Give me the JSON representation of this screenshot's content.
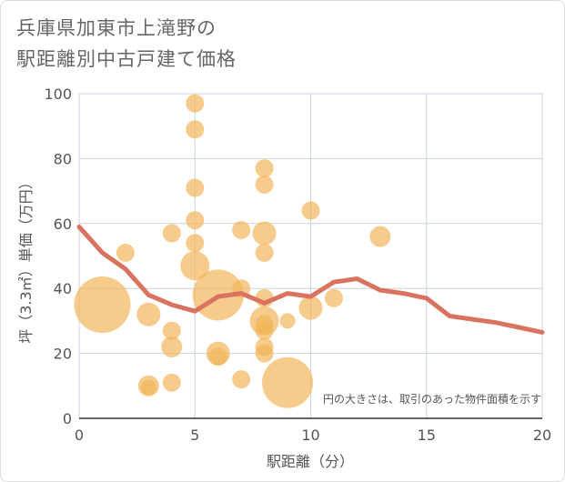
{
  "title": {
    "line1": "兵庫県加東市上滝野の",
    "line2": "駅距離別中古戸建て価格"
  },
  "chart_data": {
    "type": "scatter",
    "xlabel": "駅距離（分）",
    "ylabel": "坪（3.3㎡）単価（万円）",
    "xlim": [
      0,
      20
    ],
    "ylim": [
      0,
      100
    ],
    "xticks": [
      "0",
      "5",
      "10",
      "15",
      "20"
    ],
    "yticks": [
      "0",
      "20",
      "40",
      "60",
      "80",
      "100"
    ],
    "note": "円の大きさは、取引のあった物件面積を示す",
    "colors": {
      "bubble": "#f2b55a",
      "line": "#d9735f",
      "grid": "#c8d4e0"
    },
    "points": [
      {
        "x": 1,
        "y": 35,
        "s": 9
      },
      {
        "x": 2,
        "y": 51,
        "s": 2
      },
      {
        "x": 3,
        "y": 32,
        "s": 3
      },
      {
        "x": 3,
        "y": 10,
        "s": 2.5
      },
      {
        "x": 3,
        "y": 9.5,
        "s": 1.5
      },
      {
        "x": 4,
        "y": 57,
        "s": 2
      },
      {
        "x": 4,
        "y": 27,
        "s": 2
      },
      {
        "x": 4,
        "y": 22,
        "s": 2.5
      },
      {
        "x": 4,
        "y": 11,
        "s": 2
      },
      {
        "x": 5,
        "y": 97,
        "s": 2
      },
      {
        "x": 5,
        "y": 89,
        "s": 2
      },
      {
        "x": 5,
        "y": 71,
        "s": 2
      },
      {
        "x": 5,
        "y": 61,
        "s": 2
      },
      {
        "x": 5,
        "y": 54,
        "s": 2
      },
      {
        "x": 5,
        "y": 47,
        "s": 4
      },
      {
        "x": 6,
        "y": 38,
        "s": 8
      },
      {
        "x": 6,
        "y": 20,
        "s": 3
      },
      {
        "x": 6,
        "y": 19,
        "s": 2
      },
      {
        "x": 7,
        "y": 58,
        "s": 2
      },
      {
        "x": 7,
        "y": 40,
        "s": 2
      },
      {
        "x": 7,
        "y": 12,
        "s": 2
      },
      {
        "x": 8,
        "y": 77,
        "s": 2
      },
      {
        "x": 8,
        "y": 72,
        "s": 2
      },
      {
        "x": 8,
        "y": 57,
        "s": 3
      },
      {
        "x": 8,
        "y": 51,
        "s": 2
      },
      {
        "x": 8,
        "y": 37,
        "s": 2
      },
      {
        "x": 8,
        "y": 30,
        "s": 4
      },
      {
        "x": 8,
        "y": 29,
        "s": 2
      },
      {
        "x": 8,
        "y": 27,
        "s": 2
      },
      {
        "x": 8,
        "y": 22,
        "s": 2
      },
      {
        "x": 8,
        "y": 20,
        "s": 2
      },
      {
        "x": 9,
        "y": 11,
        "s": 8
      },
      {
        "x": 9,
        "y": 30,
        "s": 1.5
      },
      {
        "x": 10,
        "y": 64,
        "s": 2
      },
      {
        "x": 10,
        "y": 34,
        "s": 3
      },
      {
        "x": 11,
        "y": 37,
        "s": 2
      },
      {
        "x": 13,
        "y": 56,
        "s": 2.5
      }
    ],
    "trend": {
      "x": [
        0,
        1,
        2,
        3,
        4,
        5,
        6,
        7,
        8,
        9,
        10,
        11,
        12,
        13,
        14,
        15,
        16,
        17,
        18,
        19,
        20
      ],
      "y": [
        59,
        51,
        46,
        38,
        35,
        33,
        37.5,
        38.5,
        35.5,
        38.5,
        37.5,
        42,
        43,
        39.5,
        38.5,
        37,
        31.5,
        30.5,
        29.5,
        28,
        26.5
      ]
    }
  }
}
